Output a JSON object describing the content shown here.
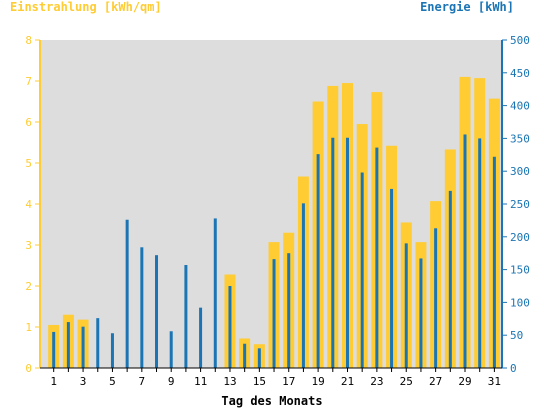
{
  "chart_data": {
    "type": "bar",
    "ylabel_left": "Einstrahlung [kWh/qm]",
    "ylabel_right": "Energie [kWh]",
    "xlabel": "Tag des Monats",
    "ylim_left": [
      0,
      8
    ],
    "ylim_right": [
      0,
      500
    ],
    "yticks_left": [
      0,
      1,
      2,
      3,
      4,
      5,
      6,
      7,
      8
    ],
    "yticks_right": [
      0,
      50,
      100,
      150,
      200,
      250,
      300,
      350,
      400,
      450,
      500
    ],
    "xtick_labels": [
      "1",
      "3",
      "5",
      "7",
      "9",
      "11",
      "13",
      "15",
      "17",
      "19",
      "21",
      "23",
      "25",
      "27",
      "29",
      "31"
    ],
    "categories": [
      1,
      2,
      3,
      4,
      5,
      6,
      7,
      8,
      9,
      10,
      11,
      12,
      13,
      14,
      15,
      16,
      17,
      18,
      19,
      20,
      21,
      22,
      23,
      24,
      25,
      26,
      27,
      28,
      29,
      30,
      31
    ],
    "series": [
      {
        "name": "Einstrahlung [kWh/qm]",
        "axis": "left",
        "values": [
          1.05,
          1.3,
          1.18,
          0,
          0,
          0,
          0,
          0,
          0,
          0,
          0,
          0,
          2.28,
          0.72,
          0.58,
          3.07,
          3.3,
          4.67,
          6.5,
          6.88,
          6.95,
          5.95,
          6.73,
          5.42,
          3.55,
          3.07,
          4.07,
          5.33,
          7.1,
          7.07,
          6.57
        ]
      },
      {
        "name": "Energie [kWh]",
        "axis": "right",
        "values": [
          55,
          70,
          63,
          76,
          53,
          226,
          184,
          172,
          56,
          157,
          92,
          228,
          125,
          37,
          30,
          166,
          175,
          251,
          326,
          351,
          351,
          298,
          336,
          273,
          190,
          167,
          213,
          270,
          356,
          350,
          322
        ]
      }
    ],
    "grid": false,
    "colors": {
      "left_series": "#FFCC33",
      "right_series": "#1B75B4",
      "plot_background": "#DDDDDD",
      "left_axis": "#FFCC33",
      "right_axis": "#1B75B4"
    }
  }
}
